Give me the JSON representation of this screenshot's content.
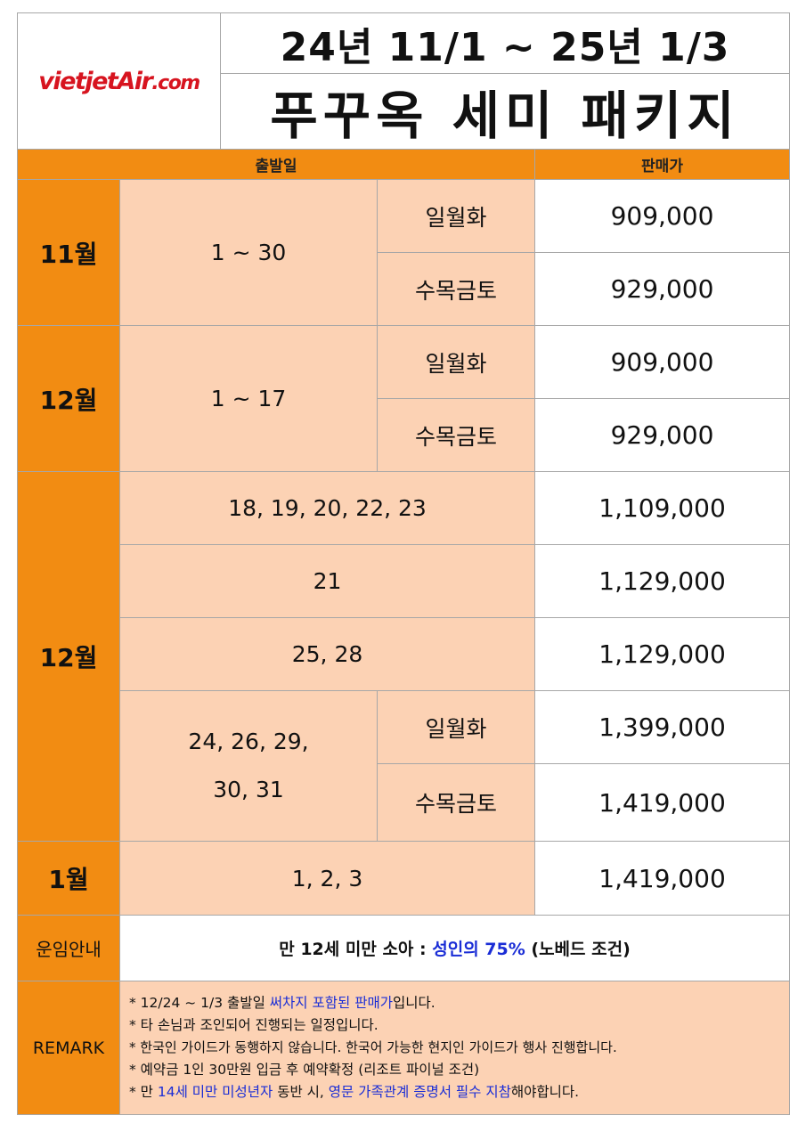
{
  "logo_text": {
    "main": "vietjetAir",
    "suffix": ".com"
  },
  "period": "24년  11/1  ~  25년  1/3",
  "title": "푸꾸옥  세미  패키지",
  "headers": {
    "departure": "출발일",
    "price": "판매가"
  },
  "rows": {
    "nov": {
      "month": "11월",
      "dates": "1 ~ 30",
      "day1": "일월화",
      "price1": "909,000",
      "day2": "수목금토",
      "price2": "929,000"
    },
    "dec1": {
      "month": "12월",
      "dates": "1 ~ 17",
      "day1": "일월화",
      "price1": "909,000",
      "day2": "수목금토",
      "price2": "929,000"
    },
    "dec2": {
      "month": "12월",
      "r1_dates": "18, 19, 20, 22, 23",
      "r1_price": "1,109,000",
      "r2_dates": "21",
      "r2_price": "1,129,000",
      "r3_dates": "25, 28",
      "r3_price": "1,129,000",
      "r4_dates_line1": "24, 26, 29,",
      "r4_dates_line2": "30, 31",
      "r4_day1": "일월화",
      "r4_price1": "1,399,000",
      "r4_day2": "수목금토",
      "r4_price2": "1,419,000"
    },
    "jan": {
      "month": "1월",
      "dates": "1, 2, 3",
      "price": "1,419,000"
    }
  },
  "fare": {
    "label": "운임안내",
    "text_a": "만 12세 미만 소아 : ",
    "text_b": "성인의 75%",
    "text_c": " (노베드 조건)"
  },
  "remark": {
    "label": "REMARK",
    "l1_a": "* 12/24 ~ 1/3 출발일 ",
    "l1_b": "써차지 포함된 판매가",
    "l1_c": "입니다.",
    "l2": "* 타 손님과 조인되어 진행되는 일정입니다.",
    "l3": "* 한국인 가이드가 동행하지 않습니다. 한국어 가능한 현지인 가이드가 행사 진행합니다.",
    "l4": "* 예약금 1인 30만원 입금 후 예약확정 (리조트 파이널 조건)",
    "l5_a": "* 만 ",
    "l5_b": "14세 미만 미성년자",
    "l5_c": " 동반 시, ",
    "l5_d": "영문 가족관계 증명서 필수 지참",
    "l5_e": "해야합니다."
  },
  "colors": {
    "orange": "#f28c12",
    "peach": "#fcd2b4",
    "brand_red": "#d7141f",
    "accent_blue": "#1a2dd6"
  }
}
